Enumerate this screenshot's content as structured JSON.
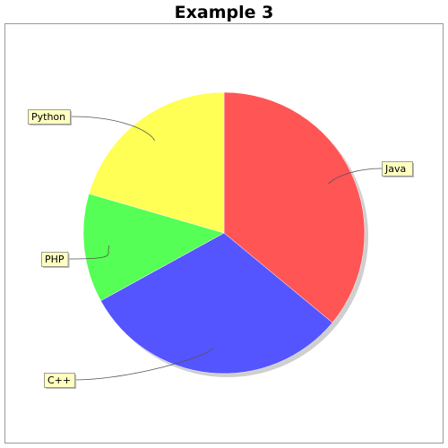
{
  "chart_data": {
    "type": "pie",
    "title": "Example 3",
    "categories": [
      "Java",
      "C++",
      "PHP",
      "Python"
    ],
    "values": [
      36,
      31,
      12.5,
      20.5
    ],
    "colors": [
      "#ff5555",
      "#5555ff",
      "#55ff55",
      "#ffff55"
    ],
    "label_background": "#ffffc0",
    "plot_border_color": "#999999",
    "shadow_color": "#cfcfcf",
    "legend": "none"
  }
}
